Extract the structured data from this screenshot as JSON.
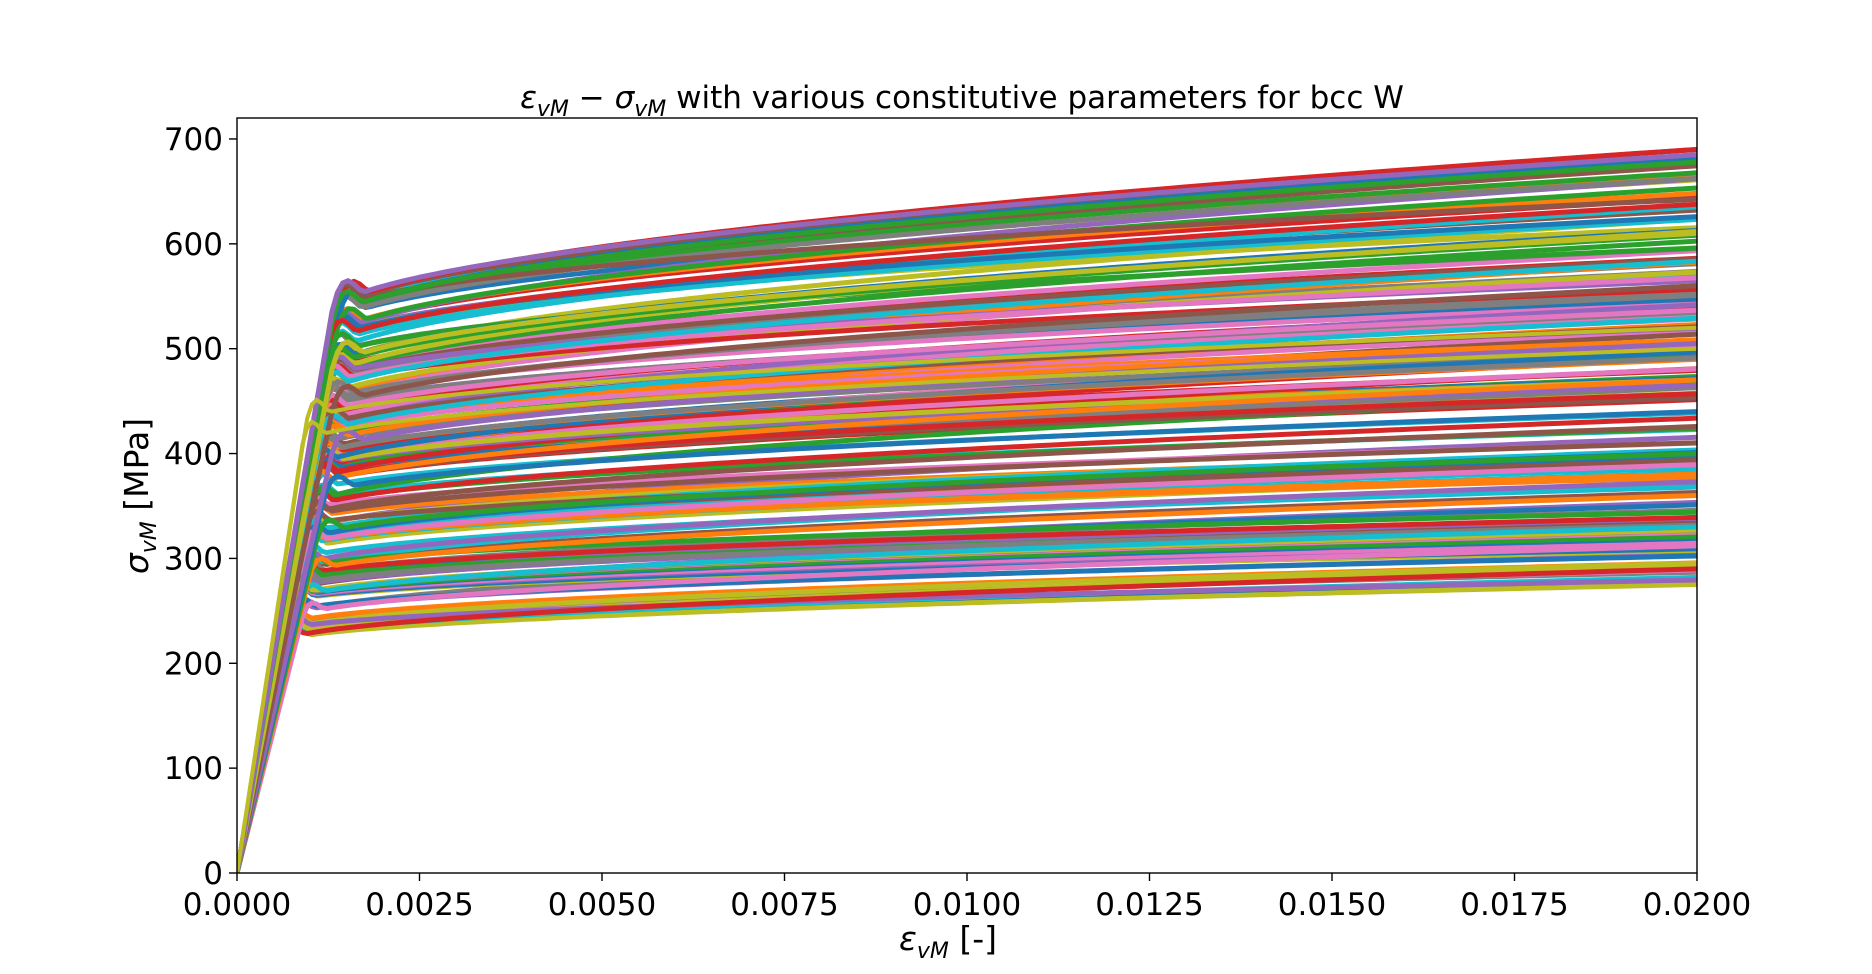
{
  "chart_data": {
    "type": "line",
    "title": {
      "eps_symbol": "ε",
      "sig_symbol": "σ",
      "sub": "vM",
      "minus": " − ",
      "rest": " with various constitutive parameters for bcc W"
    },
    "xlabel": {
      "symbol": "ε",
      "sub": "vM",
      "unit": " [-]"
    },
    "ylabel": {
      "symbol": "σ",
      "sub": "vM",
      "unit": " [MPa]"
    },
    "xlim": [
      0,
      0.02
    ],
    "ylim": [
      0,
      720
    ],
    "x_ticks": [
      "0.0000",
      "0.0025",
      "0.0050",
      "0.0075",
      "0.0100",
      "0.0125",
      "0.0150",
      "0.0175",
      "0.0200"
    ],
    "y_ticks": [
      "0",
      "100",
      "200",
      "300",
      "400",
      "500",
      "600",
      "700"
    ],
    "grid": false,
    "legend": "none",
    "palette": [
      "#1f77b4",
      "#ff7f0e",
      "#2ca02c",
      "#d62728",
      "#9467bd",
      "#8c564b",
      "#e377c2",
      "#7f7f7f",
      "#bcbd22",
      "#17becf"
    ],
    "series_envelope": {
      "count": 160,
      "lowest": {
        "yield_stress": 222,
        "stress_at_0.02": 290,
        "color": "#d62728"
      },
      "highest": {
        "yield_stress": 535,
        "stress_at_0.02": 685,
        "color": "#9467bd"
      },
      "knee_strain": 0.0013
    },
    "series_samples": [
      {
        "yield": 222,
        "end": 290,
        "knee": 0.0007,
        "color": "#d62728"
      },
      {
        "yield": 245,
        "end": 312,
        "knee": 0.0009,
        "color": "#e377c2"
      },
      {
        "yield": 262,
        "end": 330,
        "knee": 0.0009,
        "color": "#17becf"
      },
      {
        "yield": 285,
        "end": 360,
        "knee": 0.001,
        "color": "#ff7f0e"
      },
      {
        "yield": 320,
        "end": 400,
        "knee": 0.0011,
        "color": "#2ca02c"
      },
      {
        "yield": 360,
        "end": 440,
        "knee": 0.0012,
        "color": "#1f77b4"
      },
      {
        "yield": 400,
        "end": 505,
        "knee": 0.0013,
        "color": "#9467bd"
      },
      {
        "yield": 440,
        "end": 560,
        "knee": 0.0013,
        "color": "#8c564b"
      },
      {
        "yield": 480,
        "end": 610,
        "knee": 0.0013,
        "color": "#bcbd22"
      },
      {
        "yield": 525,
        "end": 678,
        "knee": 0.0013,
        "color": "#2ca02c"
      },
      {
        "yield": 535,
        "end": 685,
        "knee": 0.0013,
        "color": "#9467bd"
      }
    ]
  }
}
